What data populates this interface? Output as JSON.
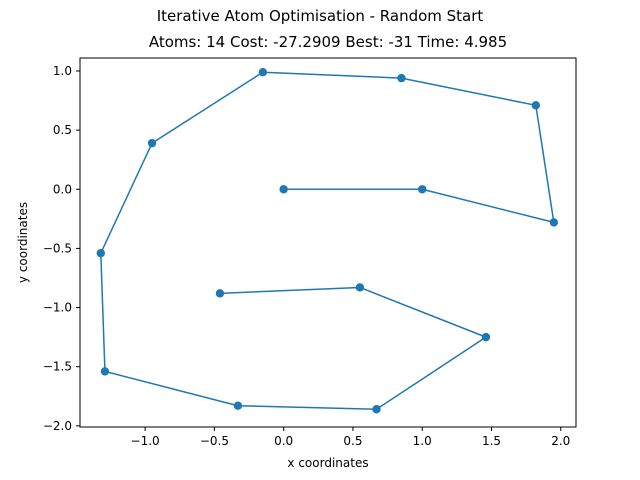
{
  "figure": {
    "suptitle": "Iterative Atom Optimisation - Random Start",
    "title": "Atoms: 14 Cost: -27.2909 Best: -31 Time: 4.985"
  },
  "colors": {
    "line": "#1f77b4",
    "marker": "#1f77b4",
    "axes": "#000000"
  },
  "chart_data": {
    "type": "line",
    "title": "Atoms: 14 Cost: -27.2909 Best: -31 Time: 4.985",
    "xlabel": "x coordinates",
    "ylabel": "y coordinates",
    "xlim": [
      -1.47,
      2.11
    ],
    "ylim": [
      -2.01,
      1.11
    ],
    "xticks": [
      -1.0,
      -0.5,
      0.0,
      0.5,
      1.0,
      1.5,
      2.0
    ],
    "xtick_labels": [
      "−1.0",
      "−0.5",
      "0.0",
      "0.5",
      "1.0",
      "1.5",
      "2.0"
    ],
    "yticks": [
      1.0,
      0.5,
      0.0,
      -0.5,
      -1.0,
      -1.5,
      -2.0
    ],
    "ytick_labels": [
      "1.0",
      "0.5",
      "0.0",
      "−0.5",
      "−1.0",
      "−1.5",
      "−2.0"
    ],
    "grid": false,
    "marker": "circle",
    "series": [
      {
        "x": [
          0.0,
          1.0,
          1.95,
          1.82,
          0.85,
          -0.15,
          -0.95,
          -1.32,
          -1.29,
          -0.33,
          0.67,
          1.46,
          0.55,
          -0.46
        ],
        "y": [
          0.0,
          0.0,
          -0.28,
          0.71,
          0.94,
          0.99,
          0.39,
          -0.54,
          -1.54,
          -1.83,
          -1.86,
          -1.25,
          -0.83,
          -0.88
        ]
      }
    ]
  }
}
